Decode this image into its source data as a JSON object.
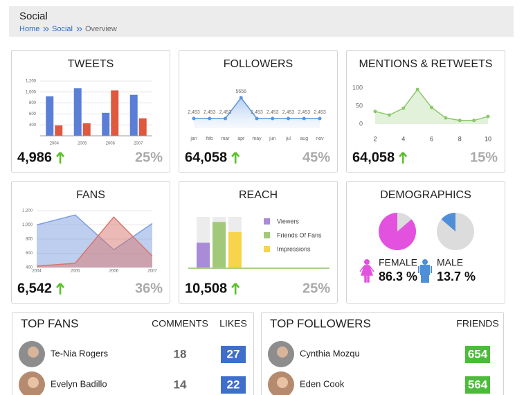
{
  "header": {
    "title": "Social",
    "breadcrumb": [
      "Home",
      "Social",
      "Overview"
    ]
  },
  "chart_data": [
    {
      "type": "bar",
      "title": "TWEETS",
      "categories": [
        "2004",
        "2005",
        "2006",
        "2007"
      ],
      "series": [
        {
          "color": "#5b7fd6",
          "values": [
            920,
            1070,
            620,
            950
          ]
        },
        {
          "color": "#e0583e",
          "values": [
            390,
            430,
            1030,
            520
          ]
        }
      ],
      "ylim": [
        200,
        1200
      ],
      "yticks": [
        {
          "value": 400,
          "label": "400"
        },
        {
          "value": 600,
          "label": "600"
        },
        {
          "value": 800,
          "label": "800"
        },
        {
          "value": 1000,
          "label": "1,000"
        },
        {
          "value": 1200,
          "label": "1,200"
        }
      ],
      "grid": true
    },
    {
      "type": "area",
      "title": "FOLLOWERS",
      "categories": [
        "jan",
        "feb",
        "mar",
        "apr",
        "may",
        "jun",
        "jul",
        "aug",
        "nov"
      ],
      "series": [
        {
          "color": "#5c93dd",
          "values": [
            2453,
            2453,
            2453,
            5656,
            2453,
            2453,
            2453,
            2453,
            2453
          ],
          "value_labels": [
            "2,453",
            "2,453",
            "2,453",
            "5656",
            "2,453",
            "2,453",
            "2,453",
            "2,453",
            "2,453"
          ]
        }
      ],
      "markers": true
    },
    {
      "type": "area",
      "title": "MENTIONS & RETWEETS",
      "x": [
        2,
        3,
        4,
        5,
        6,
        7,
        8,
        9,
        10
      ],
      "series": [
        {
          "color": "#8cc86a",
          "values": [
            35,
            25,
            44,
            96,
            46,
            17,
            10,
            10,
            21
          ]
        }
      ],
      "xlim": [
        2,
        10
      ],
      "xticks": [
        2,
        4,
        6,
        8,
        10
      ],
      "ylim": [
        0,
        100
      ],
      "yticks": [
        0,
        50,
        100
      ],
      "markers": true
    },
    {
      "type": "area",
      "title": "FANS",
      "categories": [
        "2004",
        "2005",
        "2006",
        "2007"
      ],
      "series": [
        {
          "color": "#7d9ede",
          "values": [
            1000,
            1140,
            650,
            1020
          ]
        },
        {
          "color": "#d9756d",
          "values": [
            420,
            460,
            1110,
            560
          ]
        }
      ],
      "ylim": [
        400,
        1200
      ],
      "yticks": [
        {
          "value": 400,
          "label": "400"
        },
        {
          "value": 600,
          "label": "600"
        },
        {
          "value": 800,
          "label": "800"
        },
        {
          "value": 1000,
          "label": "1,000"
        },
        {
          "value": 1200,
          "label": "1,200"
        }
      ],
      "grid": true
    },
    {
      "type": "bar",
      "title": "REACH",
      "series": [
        {
          "name": "Viewers",
          "color": "#a98bd8",
          "values": [
            49
          ]
        },
        {
          "name": "Friends Of Fans",
          "color": "#a2c97a",
          "values": [
            90
          ]
        },
        {
          "name": "Impressions",
          "color": "#f7d44c",
          "values": [
            70
          ]
        }
      ],
      "ylim": [
        0,
        100
      ]
    },
    {
      "type": "pie",
      "title": "DEMOGRAPHICS",
      "categories": [
        "FEMALE",
        "MALE"
      ],
      "values": [
        86.3,
        13.7
      ],
      "value_labels": [
        "86.3 %",
        "13.7 %"
      ],
      "colors": [
        "#e352df",
        "#4f8fd8"
      ]
    }
  ],
  "widgets": [
    {
      "total": "4,986",
      "change": "25%"
    },
    {
      "total": "64,058",
      "change": "45%"
    },
    {
      "total": "64,058",
      "change": "15%"
    },
    {
      "total": "6,542",
      "change": "36%"
    },
    {
      "total": "10,508",
      "change": "25%"
    }
  ],
  "tables": [
    {
      "columns": [
        "TOP FANS",
        "COMMENTS",
        "LIKES"
      ],
      "rows": [
        [
          "Te-Nia Rogers",
          "18",
          "27"
        ],
        [
          "Evelyn Badillo",
          "14",
          "22"
        ]
      ]
    },
    {
      "columns": [
        "TOP FOLLOWERS",
        "FRIENDS"
      ],
      "rows": [
        [
          "Cynthia Mozqu",
          "654"
        ],
        [
          "Eden Cook",
          "564"
        ]
      ]
    }
  ]
}
